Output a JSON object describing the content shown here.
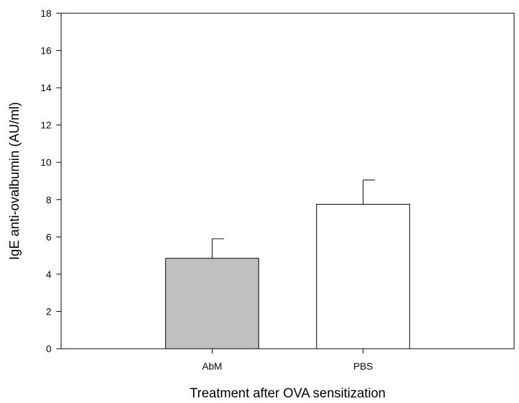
{
  "chart_data": {
    "type": "bar",
    "title": "",
    "xlabel": "Treatment after OVA sensitization",
    "ylabel": "IgE anti-ovalbumin (AU/ml)",
    "ylim": [
      0,
      18
    ],
    "yticks": [
      0,
      2,
      4,
      6,
      8,
      10,
      12,
      14,
      16,
      18
    ],
    "categories": [
      "AbM",
      "PBS"
    ],
    "values": [
      4.85,
      7.75
    ],
    "errors": [
      1.05,
      1.3
    ],
    "colors": [
      "#c0c0c0",
      "#ffffff"
    ],
    "grid": false,
    "legend": "none"
  }
}
